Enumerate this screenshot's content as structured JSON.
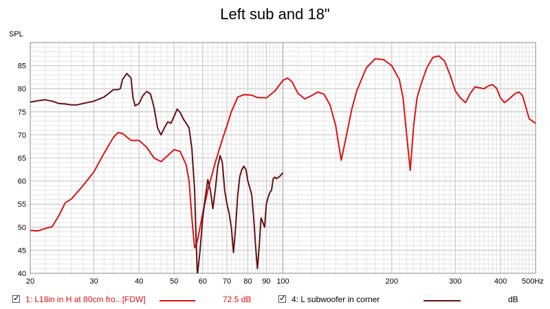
{
  "chart_data": {
    "type": "line",
    "title": "Left sub and 18\"",
    "ylabel": "SPL",
    "xlabel": "",
    "x_scale": "log",
    "xlim": [
      20,
      500
    ],
    "ylim": [
      40,
      90
    ],
    "x_ticks": [
      20,
      30,
      40,
      50,
      60,
      70,
      80,
      90,
      100,
      200,
      300,
      400,
      500
    ],
    "x_tick_labels": [
      "20",
      "30",
      "40",
      "50",
      "60",
      "70",
      "80",
      "90",
      "100",
      "200",
      "300",
      "400",
      "500Hz"
    ],
    "y_ticks": [
      40,
      45,
      50,
      55,
      60,
      65,
      70,
      75,
      80,
      85
    ],
    "grid": true,
    "series": [
      {
        "name": "1: L18in in H at 80cm fro...[FDW]",
        "color": "#dd1111",
        "value_label": "72.5 dB",
        "points": [
          [
            20,
            49.3
          ],
          [
            21,
            49.2
          ],
          [
            22,
            49.7
          ],
          [
            23,
            50.1
          ],
          [
            24,
            52.5
          ],
          [
            25,
            55.3
          ],
          [
            26,
            56.1
          ],
          [
            28,
            59
          ],
          [
            30,
            62
          ],
          [
            32,
            66
          ],
          [
            34,
            69.5
          ],
          [
            35,
            70.5
          ],
          [
            36,
            70.3
          ],
          [
            38,
            68.8
          ],
          [
            40,
            68.8
          ],
          [
            42,
            67.3
          ],
          [
            44,
            65
          ],
          [
            46,
            64.2
          ],
          [
            48,
            65.5
          ],
          [
            50,
            66.8
          ],
          [
            52,
            66.4
          ],
          [
            54,
            63.5
          ],
          [
            55,
            60
          ],
          [
            56,
            52
          ],
          [
            57,
            45.5
          ],
          [
            58,
            47
          ],
          [
            60,
            53
          ],
          [
            62,
            58
          ],
          [
            65,
            64
          ],
          [
            68,
            69
          ],
          [
            70,
            72
          ],
          [
            72,
            75
          ],
          [
            75,
            78.2
          ],
          [
            78,
            78.7
          ],
          [
            82,
            78.6
          ],
          [
            85,
            78.1
          ],
          [
            90,
            78
          ],
          [
            95,
            79.5
          ],
          [
            100,
            81.8
          ],
          [
            103,
            82.3
          ],
          [
            106,
            81.5
          ],
          [
            110,
            79
          ],
          [
            115,
            77.8
          ],
          [
            120,
            78.5
          ],
          [
            125,
            79.3
          ],
          [
            130,
            78.8
          ],
          [
            135,
            76.5
          ],
          [
            140,
            72
          ],
          [
            145,
            64.5
          ],
          [
            150,
            70
          ],
          [
            155,
            75.5
          ],
          [
            160,
            79.5
          ],
          [
            170,
            84.5
          ],
          [
            180,
            86.5
          ],
          [
            190,
            86.3
          ],
          [
            200,
            85
          ],
          [
            210,
            82
          ],
          [
            215,
            78
          ],
          [
            220,
            70
          ],
          [
            225,
            62.3
          ],
          [
            230,
            72
          ],
          [
            235,
            78
          ],
          [
            240,
            80.5
          ],
          [
            250,
            84.5
          ],
          [
            260,
            86.8
          ],
          [
            270,
            87.1
          ],
          [
            280,
            86
          ],
          [
            290,
            83
          ],
          [
            300,
            79.5
          ],
          [
            310,
            78
          ],
          [
            320,
            77
          ],
          [
            330,
            79
          ],
          [
            340,
            80.4
          ],
          [
            350,
            80.2
          ],
          [
            360,
            80
          ],
          [
            370,
            80.6
          ],
          [
            380,
            80.9
          ],
          [
            390,
            80.1
          ],
          [
            400,
            78
          ],
          [
            410,
            77
          ],
          [
            420,
            77.6
          ],
          [
            440,
            79
          ],
          [
            450,
            79.3
          ],
          [
            460,
            78.5
          ],
          [
            470,
            76
          ],
          [
            480,
            73.5
          ],
          [
            500,
            72.5
          ],
          [
            520,
            71.8
          ],
          [
            530,
            71.5
          ]
        ]
      },
      {
        "name": "4: L subwoofer in corner",
        "color": "#661111",
        "value_label": "dB",
        "points": [
          [
            20,
            77.1
          ],
          [
            21,
            77.4
          ],
          [
            22,
            77.6
          ],
          [
            23,
            77.3
          ],
          [
            24,
            76.8
          ],
          [
            25,
            76.7
          ],
          [
            26,
            76.5
          ],
          [
            27,
            76.5
          ],
          [
            28,
            76.8
          ],
          [
            30,
            77.3
          ],
          [
            32,
            78.2
          ],
          [
            33,
            79
          ],
          [
            34,
            79.8
          ],
          [
            35,
            79.8
          ],
          [
            35.5,
            80
          ],
          [
            36,
            82
          ],
          [
            37,
            83.3
          ],
          [
            38,
            82.3
          ],
          [
            38.5,
            78
          ],
          [
            39,
            76.3
          ],
          [
            40,
            76.8
          ],
          [
            41,
            78.5
          ],
          [
            42,
            79.4
          ],
          [
            43,
            78.9
          ],
          [
            44,
            76
          ],
          [
            45,
            71.5
          ],
          [
            46,
            70
          ],
          [
            47,
            71.5
          ],
          [
            48,
            72.8
          ],
          [
            49,
            72.5
          ],
          [
            50,
            74
          ],
          [
            51,
            75.6
          ],
          [
            52,
            74.8
          ],
          [
            53,
            73.5
          ],
          [
            54,
            72.5
          ],
          [
            55,
            71.5
          ],
          [
            56,
            67
          ],
          [
            57,
            58
          ],
          [
            57.5,
            48
          ],
          [
            58,
            39.5
          ],
          [
            59,
            45
          ],
          [
            60,
            52
          ],
          [
            61,
            56.5
          ],
          [
            62,
            60.3
          ],
          [
            63,
            58
          ],
          [
            64,
            54
          ],
          [
            65,
            58
          ],
          [
            66,
            63
          ],
          [
            67,
            65.5
          ],
          [
            68,
            64
          ],
          [
            69,
            58
          ],
          [
            70,
            55
          ],
          [
            71,
            53
          ],
          [
            72,
            50
          ],
          [
            73,
            44.5
          ],
          [
            74,
            50
          ],
          [
            75,
            57
          ],
          [
            76,
            61
          ],
          [
            77,
            62.5
          ],
          [
            78,
            63.2
          ],
          [
            79,
            62.5
          ],
          [
            80,
            60
          ],
          [
            81,
            58.5
          ],
          [
            82,
            57
          ],
          [
            83,
            52
          ],
          [
            84,
            46
          ],
          [
            85,
            41
          ],
          [
            86,
            46
          ],
          [
            87,
            52
          ],
          [
            88,
            51
          ],
          [
            89,
            50
          ],
          [
            90,
            55
          ],
          [
            91,
            56.5
          ],
          [
            92,
            57.5
          ],
          [
            93,
            58
          ],
          [
            94,
            60.5
          ],
          [
            95,
            60.8
          ],
          [
            96,
            60.5
          ],
          [
            98,
            61
          ],
          [
            100,
            61.8
          ]
        ]
      }
    ]
  }
}
